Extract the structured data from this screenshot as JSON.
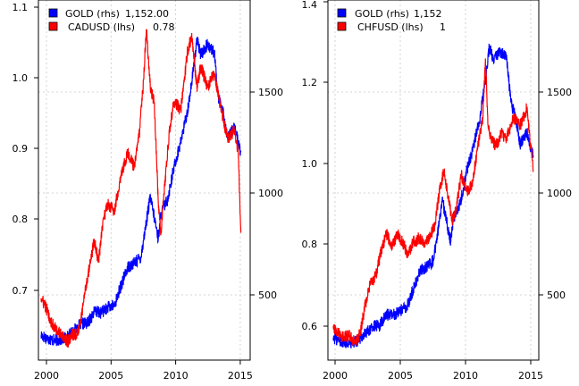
{
  "chart_data": [
    {
      "type": "line",
      "x_ticks": [
        "2000",
        "2005",
        "2010",
        "2015"
      ],
      "x_range": [
        1999.8,
        2015.7
      ],
      "left_axis": {
        "label": "",
        "ticks": [
          "0.7",
          "0.8",
          "0.9",
          "1.0",
          "1.1"
        ],
        "ylim": [
          0.605,
          1.1
        ]
      },
      "right_axis": {
        "label": "",
        "ticks": [
          "500",
          "1000",
          "1500"
        ],
        "ylim": [
          170,
          1915
        ]
      },
      "grid": true,
      "legend_position": "top-left",
      "series": [
        {
          "name": "GOLD (rhs)",
          "legend_value": "1,152.00",
          "axis": "right",
          "color": "#0000ff",
          "x": [
            2000.0,
            2000.5,
            2001.0,
            2001.5,
            2002.0,
            2002.5,
            2003.0,
            2003.5,
            2004.0,
            2004.5,
            2005.0,
            2005.5,
            2006.0,
            2006.5,
            2007.0,
            2007.5,
            2008.0,
            2008.2,
            2008.5,
            2008.8,
            2009.0,
            2009.5,
            2010.0,
            2010.5,
            2011.0,
            2011.3,
            2011.7,
            2012.0,
            2012.5,
            2013.0,
            2013.3,
            2013.7,
            2014.0,
            2014.5,
            2015.0
          ],
          "values": [
            290,
            275,
            265,
            270,
            285,
            315,
            345,
            350,
            405,
            400,
            425,
            435,
            530,
            620,
            640,
            670,
            880,
            960,
            860,
            760,
            880,
            950,
            1110,
            1230,
            1380,
            1510,
            1720,
            1650,
            1700,
            1660,
            1450,
            1360,
            1240,
            1300,
            1180
          ]
        },
        {
          "name": "CADUSD (lhs)",
          "legend_value": "0.78",
          "axis": "left",
          "color": "#ff0000",
          "x": [
            2000.0,
            2000.3,
            2000.7,
            2001.0,
            2001.5,
            2002.0,
            2002.3,
            2002.7,
            2003.0,
            2003.3,
            2003.7,
            2004.0,
            2004.3,
            2004.7,
            2005.0,
            2005.5,
            2006.0,
            2006.5,
            2007.0,
            2007.4,
            2007.7,
            2007.9,
            2008.2,
            2008.5,
            2008.8,
            2009.0,
            2009.3,
            2009.7,
            2010.0,
            2010.5,
            2011.0,
            2011.3,
            2011.7,
            2012.0,
            2012.5,
            2013.0,
            2013.5,
            2014.0,
            2014.5,
            2014.8,
            2015.0
          ],
          "values": [
            0.69,
            0.68,
            0.66,
            0.65,
            0.64,
            0.63,
            0.64,
            0.64,
            0.66,
            0.7,
            0.74,
            0.77,
            0.74,
            0.8,
            0.82,
            0.81,
            0.86,
            0.89,
            0.87,
            0.92,
            0.99,
            1.06,
            0.98,
            0.96,
            0.82,
            0.78,
            0.85,
            0.93,
            0.96,
            0.95,
            1.03,
            1.05,
            0.98,
            1.01,
            0.98,
            1.0,
            0.95,
            0.91,
            0.92,
            0.89,
            0.78
          ]
        }
      ]
    },
    {
      "type": "line",
      "x_ticks": [
        "2000",
        "2005",
        "2010",
        "2015"
      ],
      "x_range": [
        1999.6,
        2015.4
      ],
      "left_axis": {
        "label": "",
        "ticks": [
          "0.6",
          "0.8",
          "1.0",
          "1.2",
          "1.4"
        ],
        "ylim": [
          0.5375,
          1.4
        ]
      },
      "right_axis": {
        "label": "",
        "ticks": [
          "500",
          "1000",
          "1500"
        ],
        "ylim": [
          180,
          1950
        ]
      },
      "grid": true,
      "legend_position": "top-left",
      "series": [
        {
          "name": "GOLD (rhs)",
          "legend_value": "1,152",
          "axis": "right",
          "color": "#0000ff",
          "x": [
            2000.0,
            2000.5,
            2001.0,
            2001.5,
            2002.0,
            2002.5,
            2003.0,
            2003.5,
            2004.0,
            2004.5,
            2005.0,
            2005.5,
            2006.0,
            2006.5,
            2007.0,
            2007.5,
            2008.0,
            2008.2,
            2008.5,
            2008.8,
            2009.0,
            2009.5,
            2010.0,
            2010.5,
            2011.0,
            2011.3,
            2011.7,
            2012.0,
            2012.5,
            2013.0,
            2013.3,
            2013.7,
            2014.0,
            2014.5,
            2015.0
          ],
          "values": [
            290,
            275,
            265,
            270,
            285,
            315,
            345,
            350,
            405,
            400,
            425,
            435,
            530,
            620,
            640,
            670,
            880,
            960,
            860,
            760,
            880,
            950,
            1110,
            1230,
            1380,
            1510,
            1720,
            1650,
            1700,
            1660,
            1450,
            1360,
            1240,
            1300,
            1180
          ]
        },
        {
          "name": "CHFUSD (lhs)",
          "legend_value": "1",
          "axis": "left",
          "color": "#ff0000",
          "x": [
            2000.0,
            2000.4,
            2000.8,
            2001.2,
            2001.6,
            2002.0,
            2002.4,
            2002.8,
            2003.2,
            2003.6,
            2004.0,
            2004.4,
            2004.8,
            2005.2,
            2005.6,
            2006.0,
            2006.4,
            2006.8,
            2007.2,
            2007.6,
            2008.0,
            2008.3,
            2008.6,
            2008.9,
            2009.2,
            2009.6,
            2010.0,
            2010.4,
            2010.8,
            2011.2,
            2011.4,
            2011.6,
            2011.8,
            2012.2,
            2012.6,
            2013.0,
            2013.5,
            2014.0,
            2014.5,
            2014.9,
            2015.0
          ],
          "values": [
            0.62,
            0.6,
            0.59,
            0.6,
            0.58,
            0.6,
            0.67,
            0.72,
            0.74,
            0.8,
            0.84,
            0.81,
            0.84,
            0.82,
            0.79,
            0.82,
            0.83,
            0.82,
            0.83,
            0.86,
            0.95,
            0.99,
            0.93,
            0.87,
            0.9,
            0.98,
            0.94,
            0.96,
            1.04,
            1.12,
            1.26,
            1.1,
            1.07,
            1.05,
            1.08,
            1.07,
            1.12,
            1.1,
            1.14,
            1.02,
            0.99
          ]
        }
      ]
    }
  ]
}
